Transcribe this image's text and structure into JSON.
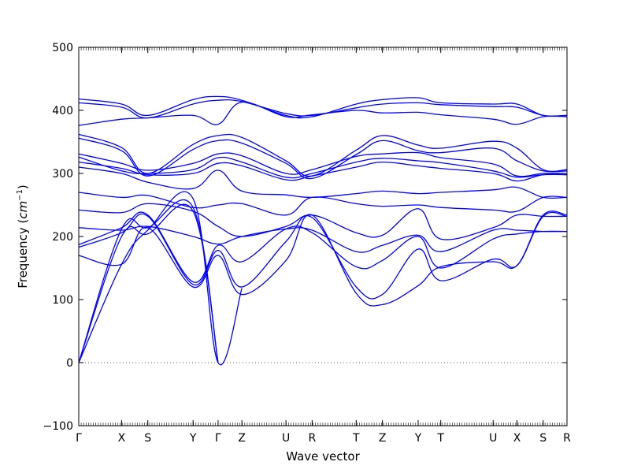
{
  "chart_data": {
    "type": "line",
    "title": "",
    "xlabel": "Wave vector",
    "ylabel_main": "Frequency (",
    "ylabel_unit": "cm",
    "ylabel_exp": "−1",
    "ylabel_close": ")",
    "ylim": [
      -100,
      500
    ],
    "yticks": [
      -100,
      0,
      100,
      200,
      300,
      400,
      500
    ],
    "xlim": [
      0,
      20.5
    ],
    "xticks": [
      {
        "label": "Γ",
        "x": 0
      },
      {
        "label": "X",
        "x": 1.8
      },
      {
        "label": "S",
        "x": 2.9
      },
      {
        "label": "Y",
        "x": 4.8
      },
      {
        "label": "Γ",
        "x": 5.85
      },
      {
        "label": "Z",
        "x": 6.85
      },
      {
        "label": "U",
        "x": 8.7
      },
      {
        "label": "R",
        "x": 9.8
      },
      {
        "label": "T",
        "x": 11.65
      },
      {
        "label": "Z",
        "x": 12.75
      },
      {
        "label": "Y",
        "x": 14.25
      },
      {
        "label": "T",
        "x": 15.2
      },
      {
        "label": "U",
        "x": 17.4
      },
      {
        "label": "X",
        "x": 18.4
      },
      {
        "label": "S",
        "x": 19.5
      },
      {
        "label": "R",
        "x": 20.5
      }
    ],
    "zero_line": true,
    "series": [
      {
        "x": [
          0,
          1.8,
          2.9,
          4.8,
          5.85,
          6.85,
          8.7,
          9.8,
          11.65,
          12.75,
          14.25,
          15.2,
          17.4,
          18.4,
          19.5,
          20.5
        ],
        "y": [
          418,
          410,
          392,
          417,
          422,
          416,
          392,
          390,
          410,
          417,
          420,
          412,
          410,
          410,
          392,
          392
        ]
      },
      {
        "x": [
          0,
          1.8,
          2.9,
          4.8,
          5.85,
          6.85,
          8.7,
          9.8,
          11.65,
          12.75,
          14.25,
          15.2,
          17.4,
          18.4,
          19.5,
          20.5
        ],
        "y": [
          412,
          405,
          388,
          410,
          416,
          414,
          395,
          392,
          404,
          410,
          412,
          409,
          406,
          405,
          392,
          392
        ]
      },
      {
        "x": [
          0,
          1.8,
          2.9,
          4.8,
          5.85,
          6.85,
          8.7,
          9.8,
          11.65,
          12.75,
          14.25,
          15.2,
          17.4,
          18.4,
          19.5,
          20.5
        ],
        "y": [
          376,
          386,
          388,
          392,
          378,
          413,
          390,
          393,
          400,
          396,
          397,
          393,
          386,
          378,
          390,
          390
        ]
      },
      {
        "x": [
          0,
          1.8,
          2.9,
          4.8,
          5.85,
          6.85,
          8.7,
          9.8,
          11.65,
          12.75,
          14.25,
          15.2,
          17.4,
          18.4,
          19.5,
          20.5
        ],
        "y": [
          362,
          341,
          300,
          346,
          360,
          357,
          320,
          296,
          337,
          360,
          345,
          340,
          351,
          340,
          306,
          306
        ]
      },
      {
        "x": [
          0,
          1.8,
          2.9,
          4.8,
          5.85,
          6.85,
          8.7,
          9.8,
          11.65,
          12.75,
          14.25,
          15.2,
          17.4,
          18.4,
          19.5,
          20.5
        ],
        "y": [
          356,
          336,
          296,
          338,
          352,
          348,
          316,
          292,
          330,
          352,
          336,
          333,
          340,
          320,
          304,
          304
        ]
      },
      {
        "x": [
          0,
          1.8,
          2.9,
          4.8,
          5.85,
          6.85,
          8.7,
          9.8,
          11.65,
          12.75,
          14.25,
          15.2,
          17.4,
          18.4,
          19.5,
          20.5
        ],
        "y": [
          331,
          316,
          305,
          316,
          331,
          328,
          300,
          306,
          327,
          331,
          333,
          325,
          315,
          296,
          300,
          300
        ]
      },
      {
        "x": [
          0,
          1.8,
          2.9,
          4.8,
          5.85,
          6.85,
          8.7,
          9.8,
          11.65,
          12.75,
          14.25,
          15.2,
          17.4,
          18.4,
          19.5,
          20.5
        ],
        "y": [
          326,
          304,
          300,
          306,
          325,
          318,
          294,
          300,
          318,
          324,
          320,
          317,
          304,
          294,
          298,
          298
        ]
      },
      {
        "x": [
          0,
          1.8,
          2.9,
          4.8,
          5.85,
          6.85,
          8.7,
          9.8,
          11.65,
          12.75,
          14.25,
          15.2,
          17.4,
          18.4,
          19.5,
          20.5
        ],
        "y": [
          318,
          308,
          298,
          300,
          316,
          312,
          290,
          296,
          310,
          318,
          312,
          308,
          300,
          288,
          298,
          298
        ]
      },
      {
        "x": [
          0,
          1.8,
          2.9,
          4.8,
          5.85,
          6.85,
          8.7,
          9.8,
          11.65,
          12.75,
          14.25,
          15.2,
          17.4,
          18.4,
          19.5,
          20.5
        ],
        "y": [
          310,
          300,
          286,
          276,
          305,
          272,
          266,
          262,
          268,
          272,
          268,
          270,
          274,
          278,
          262,
          262
        ]
      },
      {
        "x": [
          0,
          1.8,
          2.9,
          4.8,
          5.85,
          6.85,
          8.7,
          9.8,
          11.65,
          12.75,
          14.25,
          15.2,
          17.4,
          18.4,
          19.5,
          20.5
        ],
        "y": [
          270,
          262,
          265,
          246,
          250,
          252,
          234,
          262,
          252,
          248,
          250,
          246,
          242,
          240,
          262,
          262
        ]
      },
      {
        "x": [
          0,
          1.8,
          2.9,
          4.8,
          5.85,
          6.85,
          8.7,
          9.8,
          11.65,
          12.75,
          14.25,
          15.2,
          17.4,
          18.4,
          19.5,
          20.5
        ],
        "y": [
          242,
          238,
          252,
          240,
          216,
          200,
          216,
          234,
          206,
          202,
          244,
          196,
          214,
          234,
          232,
          232
        ]
      },
      {
        "x": [
          0,
          1.8,
          2.9,
          4.8,
          5.85,
          6.85,
          8.7,
          9.8,
          11.65,
          12.75,
          14.25,
          15.2,
          17.4,
          18.4,
          19.5,
          20.5
        ],
        "y": [
          214,
          210,
          216,
          200,
          188,
          200,
          212,
          210,
          176,
          186,
          202,
          176,
          210,
          210,
          208,
          208
        ]
      },
      {
        "x": [
          0,
          1.8,
          2.9,
          4.8,
          5.85,
          6.85,
          8.7,
          9.8,
          11.65,
          12.75,
          14.25,
          15.2,
          17.4,
          18.4,
          19.5,
          20.5
        ],
        "y": [
          187,
          214,
          234,
          128,
          186,
          160,
          212,
          206,
          152,
          162,
          200,
          150,
          196,
          204,
          208,
          208
        ]
      },
      {
        "x": [
          0,
          1.8,
          2.9,
          4.8,
          5.85,
          6.85,
          8.7,
          9.8,
          11.65,
          12.75,
          14.25,
          15.2,
          17.4,
          18.4,
          19.5,
          20.5
        ],
        "y": [
          183,
          206,
          232,
          124,
          178,
          120,
          192,
          230,
          120,
          108,
          180,
          130,
          164,
          154,
          232,
          232
        ]
      },
      {
        "x": [
          0,
          1.8,
          2.9,
          4.8,
          5.85,
          6.85,
          8.7,
          9.8,
          11.65,
          12.75,
          14.25,
          15.2,
          17.4,
          18.4,
          19.5,
          20.5
        ],
        "y": [
          170,
          156,
          214,
          120,
          170,
          108,
          162,
          234,
          110,
          92,
          122,
          152,
          160,
          154,
          234,
          234
        ]
      },
      {
        "x": [
          0,
          1.8,
          2.9,
          4.8,
          5.85
        ],
        "y": [
          0,
          212,
          214,
          246,
          0
        ]
      },
      {
        "x": [
          0,
          1.8,
          2.9,
          4.8,
          5.85
        ],
        "y": [
          0,
          200,
          204,
          240,
          0
        ]
      },
      {
        "x": [
          0,
          1.8,
          2.9,
          4.8,
          5.85,
          6.85
        ],
        "y": [
          0,
          156,
          210,
          260,
          0,
          118
        ]
      }
    ],
    "line_color": "#0000ff",
    "zero_line_color": "#555555"
  }
}
